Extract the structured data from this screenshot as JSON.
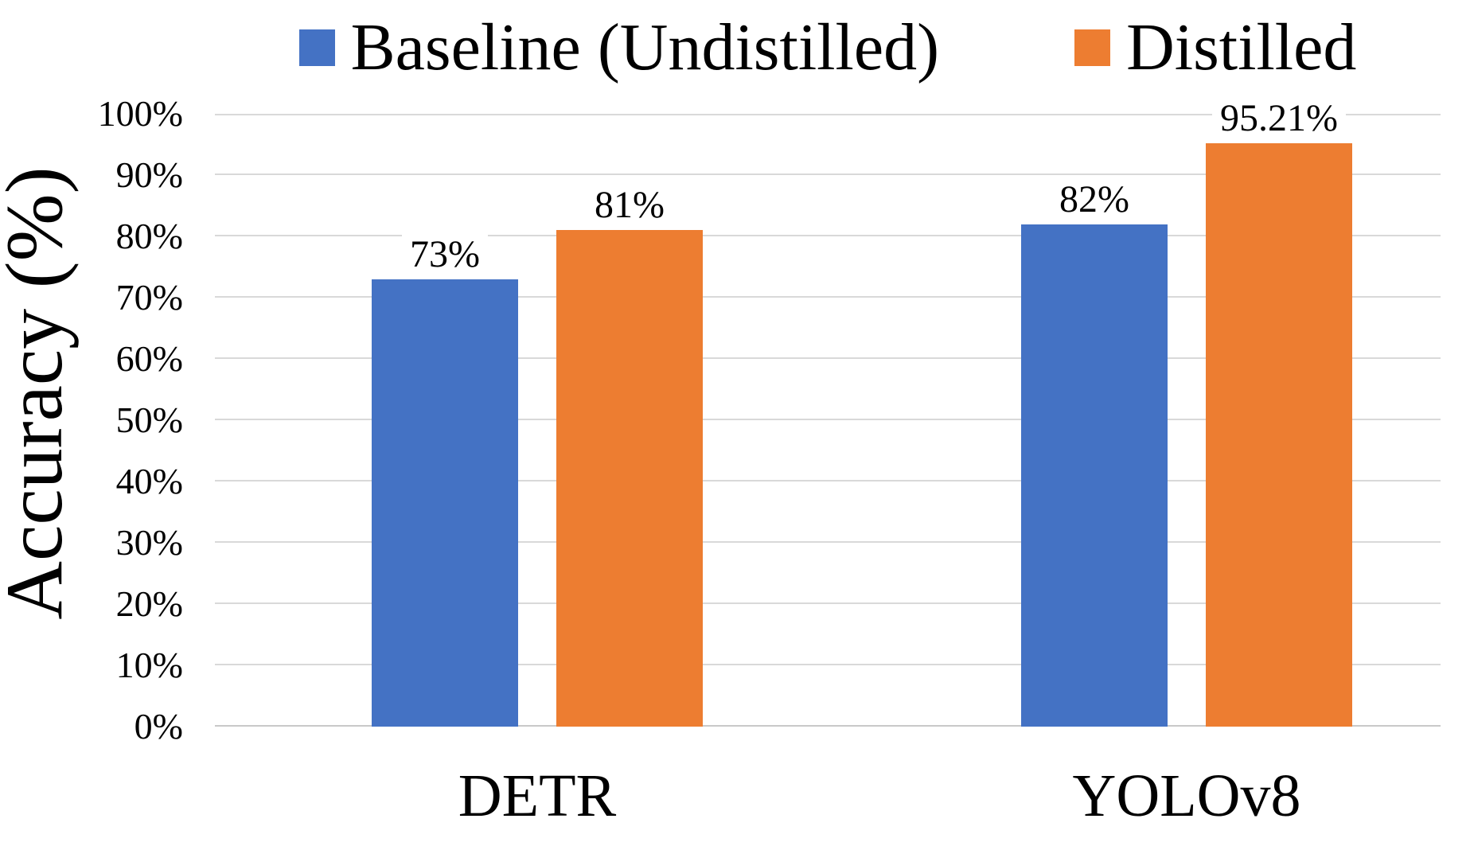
{
  "chart_data": {
    "type": "bar",
    "title": "",
    "categories": [
      "DETR",
      "YOLOv8"
    ],
    "series": [
      {
        "name": "Baseline (Undistilled)",
        "color": "#4472C4",
        "values": [
          73,
          82
        ],
        "data_labels": [
          "73%",
          "82%"
        ]
      },
      {
        "name": "Distilled",
        "color": "#ED7D31",
        "values": [
          81,
          95.21
        ],
        "data_labels": [
          "81%",
          "95.21%"
        ]
      }
    ],
    "xlabel": "",
    "ylabel": "Accuracy (%)",
    "ylim": [
      0,
      100
    ],
    "y_ticks": [
      "0%",
      "10%",
      "20%",
      "30%",
      "40%",
      "50%",
      "60%",
      "70%",
      "80%",
      "90%",
      "100%"
    ],
    "grid": "horizontal",
    "legend_position": "top-center",
    "colors": {
      "grid_line": "#D9D9D9",
      "baseline_line": "#C9C9C9",
      "text": "#000000",
      "background": "#FFFFFF"
    }
  }
}
